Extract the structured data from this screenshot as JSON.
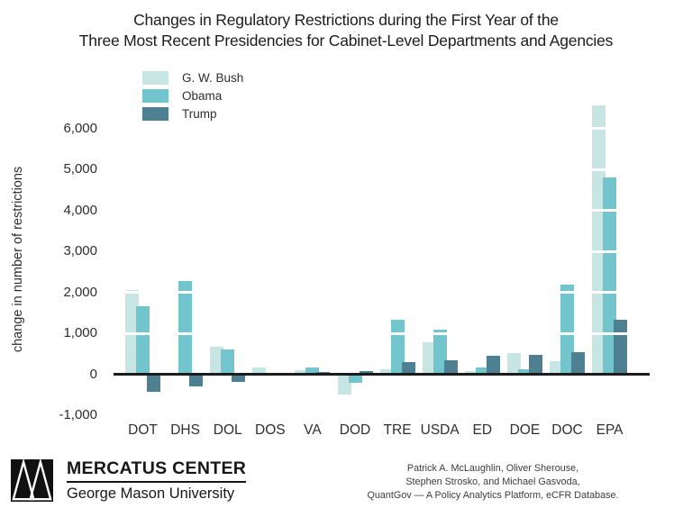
{
  "title": {
    "line1": "Changes in Regulatory Restrictions during the First Year of the",
    "line2": "Three Most Recent Presidencies for Cabinet-Level Departments and Agencies"
  },
  "chart_data": {
    "type": "bar",
    "title": "Changes in Regulatory Restrictions during the First Year of the Three Most Recent Presidencies for Cabinet-Level Departments and Agencies",
    "xlabel": "",
    "ylabel": "change in number of restrictions",
    "categories": [
      "DOT",
      "DHS",
      "DOL",
      "DOS",
      "VA",
      "DOD",
      "TRE",
      "USDA",
      "ED",
      "DOE",
      "DOC",
      "EPA"
    ],
    "series": [
      {
        "name": "G. W. Bush",
        "color": "#c7e5e2",
        "values": [
          2050,
          null,
          660,
          170,
          90,
          -500,
          110,
          790,
          70,
          510,
          310,
          6550
        ]
      },
      {
        "name": "Obama",
        "color": "#72c4cd",
        "values": [
          1650,
          2280,
          600,
          null,
          160,
          -210,
          1330,
          1090,
          160,
          110,
          2180,
          4800
        ]
      },
      {
        "name": "Trump",
        "color": "#4d8191",
        "values": [
          -430,
          -300,
          -190,
          null,
          60,
          80,
          290,
          340,
          450,
          470,
          530,
          1330
        ]
      }
    ],
    "yticks": {
      "labels": [
        "6,000",
        "5,000",
        "4,000",
        "3,000",
        "2,000",
        "1,000",
        "0",
        "-1,000"
      ],
      "values": [
        6000,
        5000,
        4000,
        3000,
        2000,
        1000,
        0,
        -1000
      ]
    },
    "ylim": [
      -1000,
      6600
    ],
    "legend_position": "top-left",
    "grid": "white horizontal gridlines at 1,000 intervals drawn over bars",
    "gridline_values": [
      1000,
      2000,
      3000,
      4000,
      5000,
      6000
    ],
    "axis_color": "#1c1c1c"
  },
  "footer": {
    "logo": {
      "icon": "mercatus-triangles-logo",
      "org": "MERCATUS CENTER",
      "sub": "George Mason University"
    },
    "attribution": {
      "line1": "Patrick A. McLaughlin, Oliver Sherouse,",
      "line2": "Stephen Strosko, and Michael Gasvoda,",
      "line3": "QuantGov — A Policy Analytics Platform, eCFR Database."
    }
  }
}
